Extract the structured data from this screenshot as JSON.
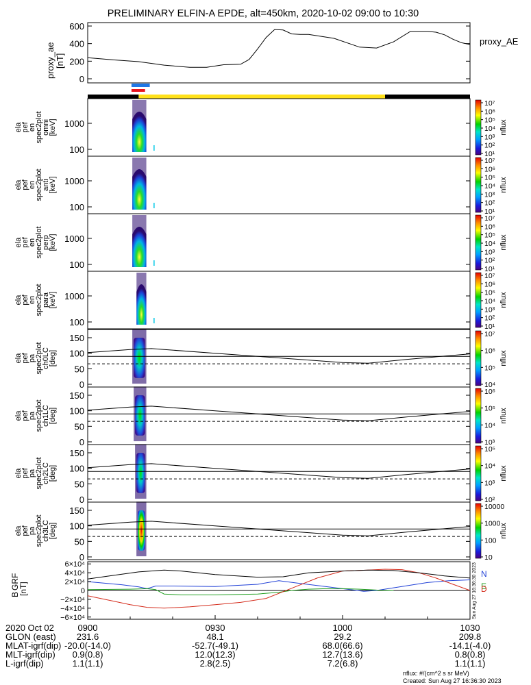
{
  "title": "PRELIMINARY ELFIN-A EPDE, alt=450km, 2020-10-02 09:00 to 10:30",
  "time_axis": {
    "x_ticks": [
      "0900",
      "0930",
      "1000",
      "1030"
    ],
    "start_label": "2020 Oct 02",
    "rows": [
      {
        "label": "GLON (east)",
        "values": [
          "231.6",
          "48.1",
          "29.2",
          "209.8"
        ]
      },
      {
        "label": "MLAT-igrf(dip)",
        "values": [
          "-20.0(-14.0)",
          "-52.7(-49.1)",
          "68.0(66.6)",
          "-14.1(-4.0)"
        ]
      },
      {
        "label": "MLT-igrf(dip)",
        "values": [
          "0.9(0.8)",
          "12.0(12.3)",
          "12.7(13.6)",
          "0.8(0.8)"
        ]
      },
      {
        "label": "L-igrf(dip)",
        "values": [
          "1.1(1.1)",
          "2.8(2.5)",
          "7.2(6.8)",
          "1.1(1.1)"
        ]
      }
    ]
  },
  "footer": {
    "units": "nflux: #/(cm^2 s sr MeV)",
    "created": "Created: Sun Aug 27 16:36:30 2023",
    "side_stamp": "Sun Aug 27 16:36:30 2023"
  },
  "colors": {
    "ae_line": "#000000",
    "bar_blue": "#1f77e6",
    "bar_red": "#e8141e",
    "bar_yellow": "#ffe11a",
    "bar_black": "#000000"
  },
  "chart_data": [
    {
      "type": "line",
      "panel": "proxy_ae",
      "ylabel": [
        "proxy_ae",
        "[nT]"
      ],
      "legend": "proxy_AE",
      "ylim": [
        0,
        650
      ],
      "y_ticks": [
        "600",
        "400",
        "200",
        "0"
      ],
      "x_minutes": [
        0,
        6,
        12,
        18,
        24,
        28,
        32,
        36,
        38,
        40,
        42,
        44,
        46,
        48,
        50,
        52,
        58,
        64,
        68,
        72,
        76,
        80,
        82,
        84,
        86,
        88,
        90
      ],
      "values": [
        240,
        215,
        195,
        155,
        130,
        130,
        160,
        165,
        220,
        340,
        470,
        560,
        555,
        510,
        505,
        505,
        460,
        360,
        350,
        420,
        540,
        540,
        530,
        500,
        450,
        410,
        390
      ]
    },
    {
      "type": "bars",
      "panel": "state_bars",
      "segments": [
        {
          "color": "bar_blue",
          "from_min": 10.3,
          "to_min": 14.6
        },
        {
          "color": "bar_red",
          "from_min": 10.3,
          "to_min": 13.5
        },
        {
          "color": "bar_black",
          "from_min": 0,
          "to_min": 12.0,
          "row": "state"
        },
        {
          "color": "bar_yellow",
          "from_min": 12.0,
          "to_min": 70.0,
          "row": "state"
        },
        {
          "color": "bar_black",
          "from_min": 70.0,
          "to_min": 90,
          "row": "state"
        }
      ]
    },
    {
      "type": "heatmap",
      "panel": "omni",
      "ylabel": [
        "ela",
        "pef",
        "en",
        "spec2plot",
        "omni",
        "[keV]"
      ],
      "y_ticks": [
        "1000",
        "100"
      ],
      "y_scale": "log",
      "ylim_keV": [
        60,
        7000
      ],
      "colorbar": {
        "label": "nflux",
        "ticks": [
          "10¹",
          "10²",
          "10³",
          "10⁴",
          "10⁵",
          "10⁶",
          "10⁷"
        ]
      }
    },
    {
      "type": "heatmap",
      "panel": "anti",
      "ylabel": [
        "ela",
        "pef",
        "en",
        "spec2plot",
        "anti",
        "[keV]"
      ],
      "y_ticks": [
        "1000",
        "100"
      ],
      "y_scale": "log",
      "colorbar": {
        "label": "nflux",
        "ticks": [
          "10¹",
          "10²",
          "10³",
          "10⁴",
          "10⁵",
          "10⁶",
          "10⁷"
        ]
      }
    },
    {
      "type": "heatmap",
      "panel": "perp",
      "ylabel": [
        "ela",
        "pef",
        "en",
        "spec2plot",
        "perp",
        "[keV]"
      ],
      "y_ticks": [
        "1000",
        "100"
      ],
      "y_scale": "log",
      "colorbar": {
        "label": "nflux",
        "ticks": [
          "10¹",
          "10²",
          "10³",
          "10⁴",
          "10⁵",
          "10⁶",
          "10⁷"
        ]
      }
    },
    {
      "type": "heatmap",
      "panel": "para",
      "ylabel": [
        "ela",
        "pef",
        "en",
        "spec2plot",
        "para",
        "[keV]"
      ],
      "y_ticks": [
        "1000",
        "100"
      ],
      "y_scale": "log",
      "colorbar": {
        "label": "nflux",
        "ticks": [
          "10¹",
          "10²",
          "10³",
          "10⁴",
          "10⁵",
          "10⁶",
          "10⁷"
        ]
      }
    },
    {
      "type": "heatmap",
      "panel": "ch0LC",
      "ylabel": [
        "ela",
        "pef",
        "pa",
        "spec2plot",
        "ch0LC",
        "[deg]"
      ],
      "y_ticks": [
        "150",
        "100",
        "50",
        "0"
      ],
      "ylim": [
        0,
        180
      ],
      "colorbar": {
        "label": "nflux",
        "ticks": [
          "10⁴",
          "10⁵",
          "10⁶",
          "10⁷"
        ]
      }
    },
    {
      "type": "heatmap",
      "panel": "ch1LC",
      "ylabel": [
        "ela",
        "pef",
        "pa",
        "spec2plot",
        "ch1LC",
        "[deg]"
      ],
      "y_ticks": [
        "150",
        "100",
        "50",
        "0"
      ],
      "ylim": [
        0,
        180
      ],
      "colorbar": {
        "label": "nflux",
        "ticks": [
          "10³",
          "10⁴",
          "10⁵",
          "10⁶"
        ]
      }
    },
    {
      "type": "heatmap",
      "panel": "ch2LC",
      "ylabel": [
        "ela",
        "pef",
        "pa",
        "spec2plot",
        "ch2LC",
        "[deg]"
      ],
      "y_ticks": [
        "150",
        "100",
        "50",
        "0"
      ],
      "ylim": [
        0,
        180
      ],
      "colorbar": {
        "label": "nflux",
        "ticks": [
          "10²",
          "10³",
          "10⁴",
          "10⁵"
        ]
      }
    },
    {
      "type": "heatmap",
      "panel": "ch3LC",
      "ylabel": [
        "ela",
        "pef",
        "pa",
        "spec2plot",
        "ch3LC",
        "[deg]"
      ],
      "y_ticks": [
        "150",
        "100",
        "50",
        "0"
      ],
      "ylim": [
        0,
        180
      ],
      "colorbar": {
        "label": "nflux",
        "ticks": [
          "10",
          "100",
          "1000",
          "10000"
        ]
      }
    },
    {
      "type": "line",
      "panel": "B_GRF",
      "ylabel": [
        "B",
        "GRF",
        "[nT]"
      ],
      "ylim": [
        -65000,
        65000
      ],
      "y_ticks": [
        "6×10⁴",
        "4×10⁴",
        "2×10⁴",
        "0",
        "−2×10⁴",
        "−4×10⁴",
        "−6×10⁴"
      ],
      "series": [
        {
          "name": "N",
          "color": "#1f3fd6",
          "x_minutes": [
            0,
            8,
            12,
            14,
            16,
            20,
            30,
            40,
            45,
            50,
            55,
            60,
            65,
            68,
            72,
            76,
            80,
            85,
            90
          ],
          "values": [
            20000,
            13000,
            8000,
            4000,
            10000,
            10000,
            9000,
            14000,
            22000,
            16000,
            10000,
            4000,
            -2000,
            0,
            6000,
            12000,
            18000,
            22000,
            24000
          ]
        },
        {
          "name": "E",
          "color": "#1e9e1e",
          "x_minutes": [
            0,
            10,
            14,
            16,
            18,
            22,
            30,
            40,
            45,
            48,
            52,
            56,
            60,
            64,
            68,
            72
          ],
          "values": [
            2000,
            3000,
            4000,
            2000,
            -8000,
            -10000,
            -10000,
            -8000,
            -4000,
            0,
            3000,
            4000,
            4000,
            3000,
            1000,
            0
          ]
        },
        {
          "name": "D",
          "color": "#d42a1a",
          "x_minutes": [
            0,
            6,
            10,
            14,
            18,
            24,
            30,
            36,
            42,
            48,
            54,
            60,
            66,
            70,
            74,
            78,
            82,
            86,
            90
          ],
          "values": [
            -12000,
            -24000,
            -32000,
            -38000,
            -40000,
            -37000,
            -32000,
            -27000,
            -18000,
            5000,
            28000,
            44000,
            46000,
            48000,
            47000,
            40000,
            28000,
            14000,
            0
          ]
        },
        {
          "name": "",
          "color": "#000000",
          "x_minutes": [
            0,
            6,
            12,
            18,
            22,
            30,
            40,
            46,
            52,
            60,
            66,
            72,
            78,
            84,
            90
          ],
          "values": [
            26000,
            34000,
            42000,
            46000,
            44000,
            36000,
            30000,
            31000,
            40000,
            44000,
            46000,
            45000,
            40000,
            33000,
            28000
          ]
        }
      ]
    }
  ]
}
